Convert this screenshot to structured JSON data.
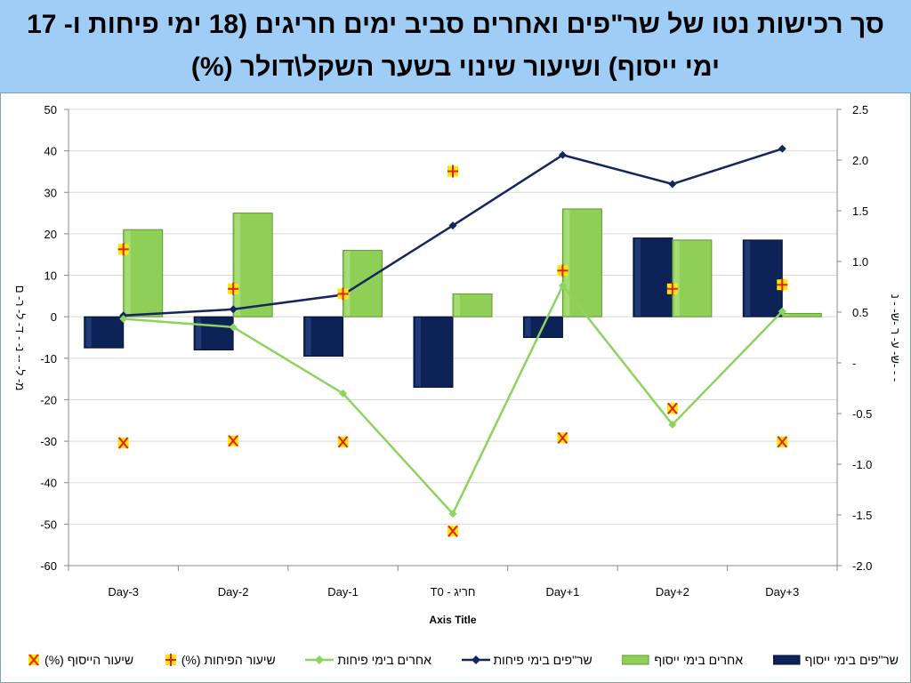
{
  "title": "סך רכישות נטו של שר\"פים ואחרים סביב ימים חריגים (18 ימי פיחות ו- 17 ימי ייסוף) ושיעור שינוי בשער השקל\\דולר (%)",
  "colors": {
    "banner": "#9fcdf5",
    "bar_dark": "#0d2357",
    "bar_green": "#8fcf57",
    "line_dark": "#14265e",
    "line_green": "#8dd35f",
    "marker_fill": "#ffe800",
    "marker_stroke": "#e02020"
  },
  "chart_data": {
    "type": "bar",
    "title": "סך רכישות נטו של שר\"פים ואחרים סביב ימים חריגים (18 ימי פיחות ו- 17 ימי ייסוף) ושיעור שינוי בשער השקל\\דולר (%)",
    "categories": [
      "Day-3",
      "Day-2",
      "Day-1",
      "T0 - חריג",
      "Day+1",
      "Day+2",
      "Day+3"
    ],
    "xlabel": "Axis Title",
    "ylabel": "מ- ל- -- נ- - ד- ל- ר- ם",
    "y2label": "ש- ע- ר -ש- - נ- - -",
    "ylim": [
      -60,
      50
    ],
    "y_ticks": [
      "50",
      "40",
      "30",
      "20",
      "10",
      "0",
      "-10",
      "-20",
      "-30",
      "-40",
      "-50",
      "-60"
    ],
    "y2lim": [
      -2.0,
      2.5
    ],
    "y2_ticks": [
      "2.5",
      "2.0",
      "1.5",
      "1.0",
      "0.5",
      "-",
      "-0.5",
      "-1.0",
      "-1.5",
      "-2.0"
    ],
    "grid": true,
    "legend_position": "bottom",
    "series": [
      {
        "name": "שר\"פים בימי ייסוף",
        "kind": "bar",
        "axis": "left",
        "color": "#0d2357",
        "values": [
          -7.5,
          -8,
          -9.5,
          -17,
          -5,
          19,
          18.5
        ]
      },
      {
        "name": "אחרים בימי ייסוף",
        "kind": "bar",
        "axis": "left",
        "color": "#8fcf57",
        "values": [
          21,
          25,
          16,
          5.5,
          26,
          18.5,
          0.8
        ]
      },
      {
        "name": "שר\"פים בימי פיחות",
        "kind": "line",
        "axis": "left",
        "color": "#14265e",
        "values": [
          0.3,
          1.8,
          5.3,
          22,
          39,
          32,
          40.5
        ]
      },
      {
        "name": "אחרים בימי פיחות",
        "kind": "line",
        "axis": "left",
        "color": "#8dd35f",
        "values": [
          -0.5,
          -2.5,
          -18.5,
          -47.5,
          7.5,
          -26,
          1.3
        ]
      },
      {
        "name": "שיעור הפיחות (%)",
        "kind": "marker",
        "axis": "right",
        "marker": "plus",
        "values": [
          1.12,
          0.73,
          0.68,
          1.89,
          0.91,
          0.73,
          0.77
        ]
      },
      {
        "name": "שיעור הייסוף (%)",
        "kind": "marker",
        "axis": "right",
        "marker": "x",
        "values": [
          -0.79,
          -0.77,
          -0.78,
          -1.66,
          -0.74,
          -0.45,
          -0.78
        ]
      }
    ]
  }
}
